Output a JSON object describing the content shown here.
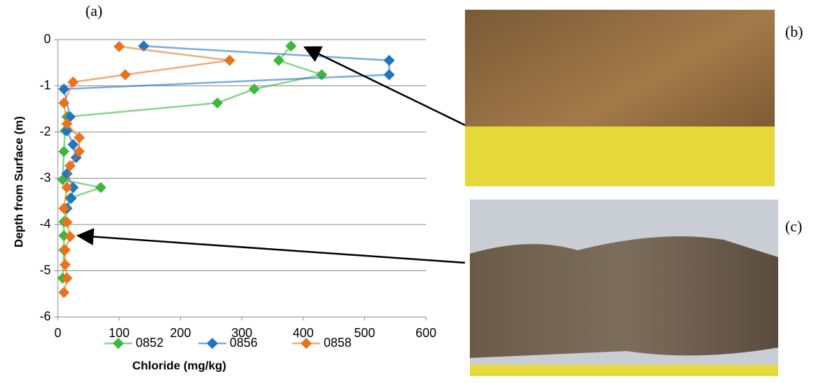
{
  "chart_data": {
    "type": "line",
    "panel_label": "(a)",
    "x_label": "Chloride (mg/kg)",
    "y_label": "Depth from Surface (m)",
    "xlim": [
      0,
      600
    ],
    "xticks": [
      0,
      100,
      200,
      300,
      400,
      500,
      600
    ],
    "ylim": [
      -6,
      0
    ],
    "yticks": [
      0,
      -1,
      -2,
      -3,
      -4,
      -5,
      -6
    ],
    "grid": true,
    "legend": "bottom",
    "series": [
      {
        "name": "0852",
        "color": "#3cb83c",
        "x": [
          380,
          360,
          430,
          320,
          260,
          15,
          12,
          10,
          8,
          70,
          20,
          10,
          10,
          10,
          8
        ],
        "values": [
          -0.14,
          -0.45,
          -0.76,
          -1.07,
          -1.37,
          -1.67,
          -1.97,
          -2.42,
          -3.03,
          -3.2,
          -3.43,
          -3.94,
          -4.24,
          -4.55,
          -5.16
        ]
      },
      {
        "name": "0856",
        "color": "#1f74c4",
        "x": [
          140,
          540,
          540,
          10,
          20,
          15,
          25,
          30,
          15,
          25,
          22,
          15
        ],
        "values": [
          -0.14,
          -0.45,
          -0.76,
          -1.07,
          -1.67,
          -1.97,
          -2.27,
          -2.55,
          -2.9,
          -3.2,
          -3.43,
          -3.65
        ]
      },
      {
        "name": "0858",
        "color": "#e8731b",
        "x": [
          100,
          280,
          110,
          25,
          10,
          15,
          35,
          35,
          20,
          15,
          10,
          15,
          20,
          12,
          12,
          15,
          10
        ],
        "values": [
          -0.15,
          -0.45,
          -0.76,
          -0.92,
          -1.37,
          -1.82,
          -2.12,
          -2.42,
          -2.73,
          -3.2,
          -3.65,
          -3.95,
          -4.26,
          -4.55,
          -4.87,
          -5.16,
          -5.47
        ]
      }
    ]
  },
  "photos": {
    "b": "(b)",
    "c": "(c)"
  }
}
